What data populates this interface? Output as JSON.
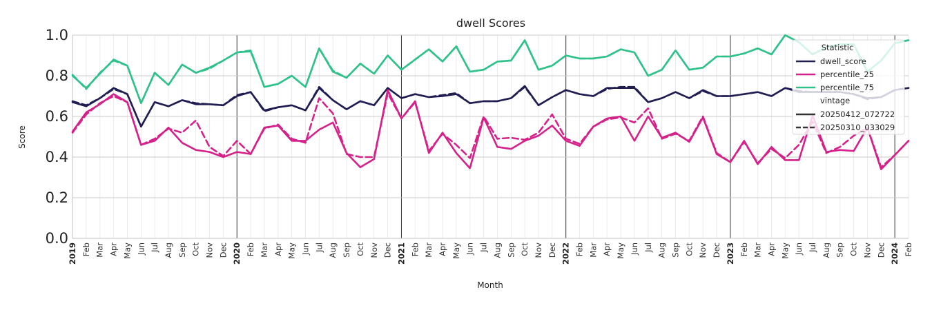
{
  "chart_data": {
    "type": "line",
    "title": "dwell Scores",
    "xlabel": "Month",
    "ylabel": "Score",
    "ylim": [
      0,
      1
    ],
    "yticks": [
      "0.0",
      "0.2",
      "0.4",
      "0.6",
      "0.8",
      "1.0"
    ],
    "x_tick_labels": [
      "2019",
      "Feb",
      "Mar",
      "Apr",
      "May",
      "Jun",
      "Jul",
      "Aug",
      "Sep",
      "Oct",
      "Nov",
      "Dec",
      "2020",
      "Feb",
      "Mar",
      "Apr",
      "May",
      "Jun",
      "Jul",
      "Aug",
      "Sep",
      "Oct",
      "Nov",
      "Dec",
      "2021",
      "Feb",
      "Mar",
      "Apr",
      "May",
      "Jun",
      "Jul",
      "Aug",
      "Sep",
      "Oct",
      "Nov",
      "Dec",
      "2022",
      "Feb",
      "Mar",
      "Apr",
      "May",
      "Jun",
      "Jul",
      "Aug",
      "Sep",
      "Oct",
      "Nov",
      "Dec",
      "2023",
      "Feb",
      "Mar",
      "Apr",
      "May",
      "Jun",
      "Jul",
      "Aug",
      "Sep",
      "Oct",
      "Nov",
      "Dec",
      "2024",
      "Feb"
    ],
    "year_indices": [
      0,
      12,
      24,
      36,
      48,
      60
    ],
    "legend": {
      "title": "Statistic",
      "vintage_title": "vintage",
      "placement": "top-right",
      "stat_entries": [
        {
          "name": "dwell_score",
          "color": "#1f1d52"
        },
        {
          "name": "percentile_25",
          "color": "#d6218a"
        },
        {
          "name": "percentile_75",
          "color": "#2ec28a"
        }
      ],
      "vintage_entries": [
        {
          "name": "20250412_072722",
          "style": "solid"
        },
        {
          "name": "20250310_033029",
          "style": "dashed"
        }
      ]
    },
    "series": [
      {
        "name": "dwell_score",
        "vintage": "20250412_072722",
        "color": "#1f1d52",
        "style": "solid",
        "values": [
          0.67,
          0.65,
          0.69,
          0.74,
          0.71,
          0.55,
          0.67,
          0.65,
          0.68,
          0.66,
          0.66,
          0.655,
          0.7,
          0.72,
          0.63,
          0.645,
          0.655,
          0.63,
          0.74,
          0.68,
          0.635,
          0.675,
          0.655,
          0.74,
          0.69,
          0.71,
          0.695,
          0.7,
          0.71,
          0.665,
          0.675,
          0.675,
          0.69,
          0.75,
          0.655,
          0.695,
          0.73,
          0.71,
          0.7,
          0.74,
          0.74,
          0.74,
          0.67,
          0.69,
          0.72,
          0.69,
          0.73,
          0.7,
          0.7,
          0.71,
          0.72,
          0.7,
          0.74,
          0.72,
          0.72,
          0.72,
          0.72,
          0.71,
          0.69,
          0.695,
          0.73,
          0.74
        ]
      },
      {
        "name": "dwell_score",
        "vintage": "20250310_033029",
        "color": "#1f1d52",
        "style": "dashed",
        "values": [
          0.675,
          0.655,
          0.69,
          0.735,
          0.71,
          0.55,
          0.67,
          0.65,
          0.68,
          0.665,
          0.66,
          0.655,
          0.705,
          0.72,
          0.625,
          0.645,
          0.655,
          0.63,
          0.745,
          0.68,
          0.635,
          0.675,
          0.655,
          0.74,
          0.69,
          0.71,
          0.695,
          0.705,
          0.715,
          0.665,
          0.675,
          0.675,
          0.69,
          0.745,
          0.655,
          0.695,
          0.73,
          0.71,
          0.7,
          0.735,
          0.745,
          0.745,
          0.67,
          0.69,
          0.72,
          0.69,
          0.725,
          0.7,
          0.7,
          0.71,
          0.72,
          0.7,
          0.74,
          0.725,
          0.72,
          0.72,
          0.72,
          0.71,
          0.685,
          0.695,
          0.73,
          0.74
        ]
      },
      {
        "name": "percentile_25",
        "vintage": "20250412_072722",
        "color": "#d6218a",
        "style": "solid",
        "values": [
          0.525,
          0.62,
          0.66,
          0.71,
          0.67,
          0.46,
          0.48,
          0.545,
          0.47,
          0.435,
          0.425,
          0.4,
          0.425,
          0.415,
          0.545,
          0.555,
          0.48,
          0.48,
          0.535,
          0.57,
          0.42,
          0.35,
          0.39,
          0.73,
          0.59,
          0.675,
          0.42,
          0.52,
          0.42,
          0.345,
          0.595,
          0.45,
          0.44,
          0.48,
          0.505,
          0.555,
          0.48,
          0.455,
          0.55,
          0.59,
          0.6,
          0.48,
          0.6,
          0.495,
          0.52,
          0.475,
          0.595,
          0.415,
          0.375,
          0.48,
          0.365,
          0.45,
          0.385,
          0.385,
          0.605,
          0.425,
          0.435,
          0.43,
          0.545,
          0.34,
          0.41,
          0.48
        ]
      },
      {
        "name": "percentile_25",
        "vintage": "20250310_033029",
        "color": "#d6218a",
        "style": "dashed",
        "values": [
          0.52,
          0.61,
          0.665,
          0.7,
          0.67,
          0.46,
          0.49,
          0.54,
          0.52,
          0.58,
          0.45,
          0.405,
          0.48,
          0.415,
          0.54,
          0.56,
          0.49,
          0.47,
          0.69,
          0.615,
          0.415,
          0.4,
          0.4,
          0.715,
          0.59,
          0.67,
          0.43,
          0.515,
          0.46,
          0.395,
          0.6,
          0.49,
          0.495,
          0.485,
          0.52,
          0.61,
          0.49,
          0.465,
          0.55,
          0.585,
          0.595,
          0.57,
          0.64,
          0.49,
          0.515,
          0.48,
          0.6,
          0.42,
          0.375,
          0.475,
          0.37,
          0.44,
          0.395,
          0.46,
          0.575,
          0.42,
          0.45,
          0.505,
          0.545,
          0.35,
          0.41,
          0.48
        ]
      },
      {
        "name": "percentile_75",
        "vintage": "20250412_072722",
        "color": "#2ec28a",
        "style": "solid",
        "values": [
          0.8,
          0.74,
          0.81,
          0.88,
          0.85,
          0.665,
          0.815,
          0.755,
          0.855,
          0.815,
          0.84,
          0.875,
          0.915,
          0.92,
          0.745,
          0.76,
          0.8,
          0.745,
          0.935,
          0.82,
          0.79,
          0.86,
          0.81,
          0.9,
          0.83,
          0.88,
          0.93,
          0.87,
          0.945,
          0.82,
          0.83,
          0.87,
          0.875,
          0.975,
          0.83,
          0.85,
          0.9,
          0.885,
          0.885,
          0.895,
          0.93,
          0.915,
          0.8,
          0.83,
          0.925,
          0.83,
          0.84,
          0.895,
          0.895,
          0.91,
          0.935,
          0.905,
          1.0,
          0.965,
          0.905,
          0.94,
          0.955,
          0.955,
          0.82,
          0.875,
          0.96,
          0.975
        ]
      },
      {
        "name": "percentile_75",
        "vintage": "20250310_033029",
        "color": "#2ec28a",
        "style": "dashed",
        "values": [
          0.805,
          0.735,
          0.815,
          0.875,
          0.85,
          0.665,
          0.815,
          0.755,
          0.855,
          0.815,
          0.835,
          0.875,
          0.915,
          0.925,
          0.745,
          0.76,
          0.8,
          0.745,
          0.935,
          0.825,
          0.79,
          0.86,
          0.81,
          0.9,
          0.83,
          0.88,
          0.93,
          0.87,
          0.945,
          0.82,
          0.83,
          0.87,
          0.875,
          0.975,
          0.83,
          0.85,
          0.9,
          0.885,
          0.885,
          0.895,
          0.93,
          0.915,
          0.8,
          0.83,
          0.925,
          0.83,
          0.84,
          0.895,
          0.895,
          0.91,
          0.935,
          0.905,
          1.0,
          0.965,
          0.905,
          0.94,
          0.955,
          0.955,
          0.82,
          0.875,
          0.96,
          0.975
        ]
      }
    ]
  }
}
